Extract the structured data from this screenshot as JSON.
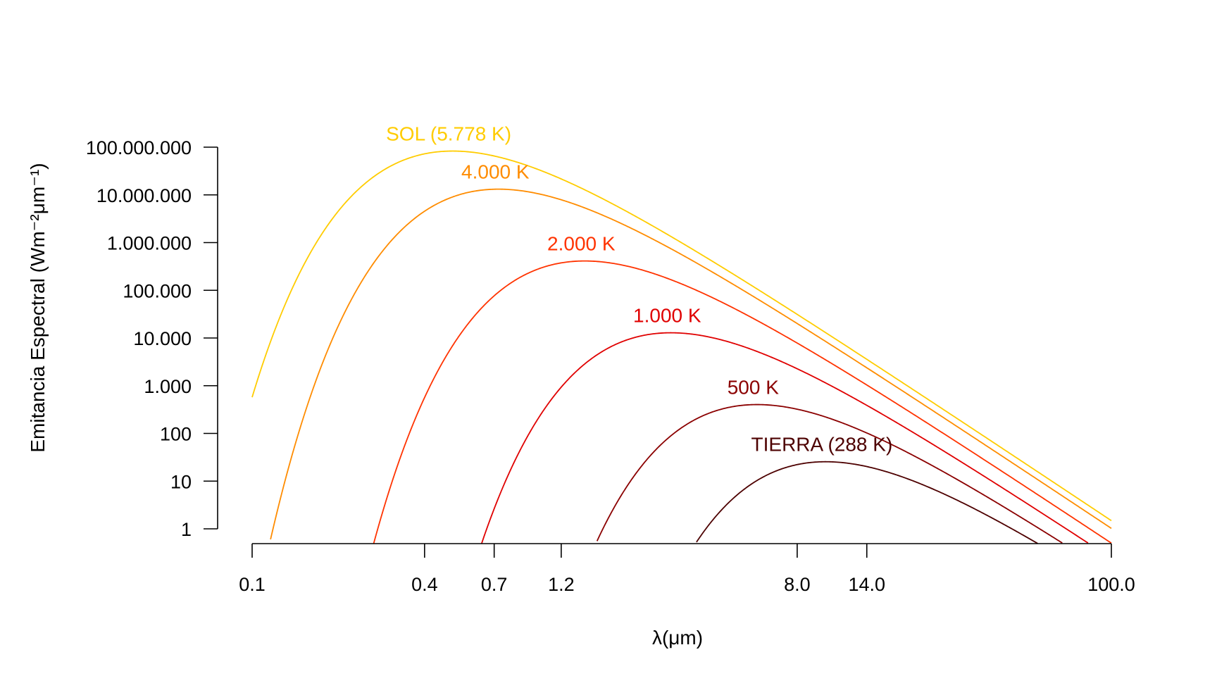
{
  "chart_data": {
    "type": "line",
    "title": "",
    "xlabel": "λ(μm)",
    "ylabel": "Emitancia Espectral (Wm⁻²μm⁻¹)",
    "x_scale": "log",
    "y_scale": "log",
    "xlim": [
      0.1,
      100.0
    ],
    "ylim": [
      1,
      100000000
    ],
    "x_ticks": [
      {
        "value": 0.1,
        "label": "0.1"
      },
      {
        "value": 0.4,
        "label": "0.4"
      },
      {
        "value": 0.7,
        "label": "0.7"
      },
      {
        "value": 1.2,
        "label": "1.2"
      },
      {
        "value": 8.0,
        "label": "8.0"
      },
      {
        "value": 14.0,
        "label": "14.0"
      },
      {
        "value": 100.0,
        "label": "100.0"
      }
    ],
    "y_ticks": [
      {
        "value": 1,
        "label": "1"
      },
      {
        "value": 10,
        "label": "10"
      },
      {
        "value": 100,
        "label": "100"
      },
      {
        "value": 1000,
        "label": "1.000"
      },
      {
        "value": 10000,
        "label": "10.000"
      },
      {
        "value": 100000,
        "label": "100.000"
      },
      {
        "value": 1000000,
        "label": "1.000.000"
      },
      {
        "value": 10000000,
        "label": "10.000.000"
      },
      {
        "value": 100000000,
        "label": "100.000.000"
      }
    ],
    "grid": false,
    "legend": "none",
    "series": [
      {
        "name": "SOL (5.778 K)",
        "temperature_K": 5778,
        "color": "#FFCC00"
      },
      {
        "name": "4.000 K",
        "temperature_K": 4000,
        "color": "#FF8C00"
      },
      {
        "name": "2.000 K",
        "temperature_K": 2000,
        "color": "#FF3300"
      },
      {
        "name": "1.000 K",
        "temperature_K": 1000,
        "color": "#E00000"
      },
      {
        "name": "500 K",
        "temperature_K": 500,
        "color": "#8B0000"
      },
      {
        "name": "TIERRA (288 K)",
        "temperature_K": 288,
        "color": "#4D0000"
      }
    ]
  }
}
